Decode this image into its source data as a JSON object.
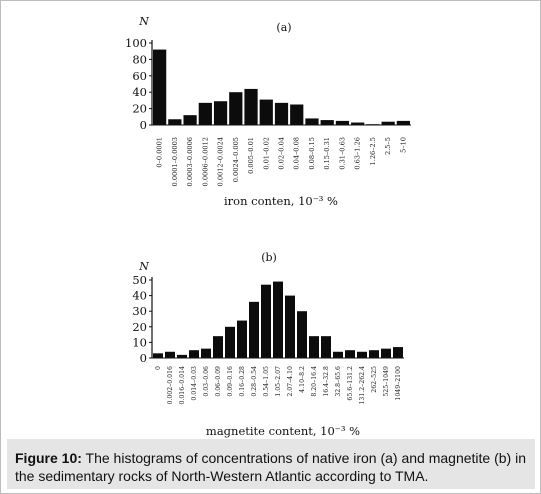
{
  "chart_data": [
    {
      "type": "bar",
      "panel_label": "(a)",
      "ylabel": "N",
      "xlabel": "iron conten, 10⁻³ %",
      "ylim": [
        0,
        100
      ],
      "yticks": [
        0,
        20,
        40,
        60,
        80,
        100
      ],
      "categories": [
        "0–0.0001",
        "0.0001–0.0003",
        "0.0003–0.0006",
        "0.0006–0.0012",
        "0.0012–0.0024",
        "0.0024–0.005",
        "0.005–0.01",
        "0.01–0.02",
        "0.02–0.04",
        "0.04–0.08",
        "0.08–0.15",
        "0.15–0.31",
        "0.31–0.63",
        "0.63–1.26",
        "1.26–2.5",
        "2.5–5",
        "5–10"
      ],
      "values": [
        92,
        7,
        12,
        27,
        29,
        40,
        44,
        31,
        27,
        25,
        8,
        6,
        5,
        3,
        1,
        4,
        5
      ],
      "grid": false,
      "legend": "none"
    },
    {
      "type": "bar",
      "panel_label": "(b)",
      "ylabel": "N",
      "xlabel": "magnetite content, 10⁻³ %",
      "ylim": [
        0,
        50
      ],
      "yticks": [
        0,
        10,
        20,
        30,
        40,
        50
      ],
      "categories": [
        "0",
        "0.002–0.016",
        "0.016–0.014",
        "0.014–0.03",
        "0.03–0.06",
        "0.06–0.09",
        "0.09–0.16",
        "0.16–0.28",
        "0.28–0.54",
        "0.54–1.05",
        "1.05–2.07",
        "2.07–4.10",
        "4.10–8.2",
        "8.20–16.4",
        "16.4–32.8",
        "32.8–65.6",
        "65.6–131.2",
        "131.2–262.4",
        "262–525",
        "525–1049",
        "1049–2100"
      ],
      "values": [
        3,
        4,
        2,
        5,
        6,
        14,
        20,
        24,
        36,
        47,
        49,
        40,
        30,
        14,
        14,
        4,
        5,
        4,
        5,
        6,
        7
      ],
      "grid": false,
      "legend": "none"
    }
  ],
  "caption": {
    "label": "Figure 10:",
    "text": " The histograms of concentrations of native iron (a) and magnetite (b) in the sedimentary rocks of North-Western Atlantic according to TMA."
  }
}
